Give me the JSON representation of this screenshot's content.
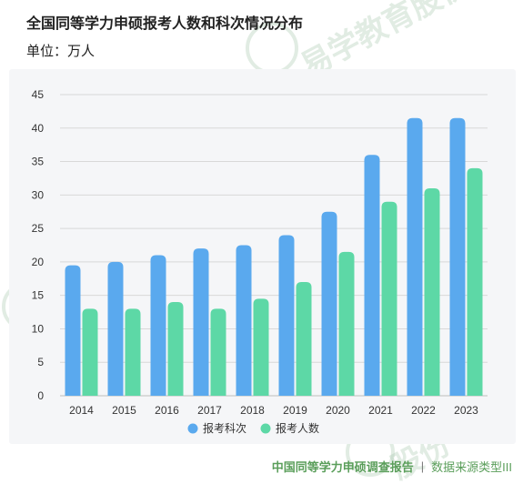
{
  "header": {
    "title": "全国同等学力申硕报考人数和科次情况分布",
    "unit": "单位：万人"
  },
  "footer": {
    "brand": "中国同等学力申硕调查报告",
    "separator": "|",
    "source": "数据来源类型III"
  },
  "watermark": {
    "text": "易学教育股份"
  },
  "colors": {
    "series1": "#5aa9ee",
    "series1_top": "#4d9be6",
    "series2": "#5dd8a6",
    "series2_top": "#4fcc98",
    "grid": "#d8d8d8",
    "axis_text": "#333333"
  },
  "chart_data": {
    "type": "bar",
    "title": "全国同等学力申硕报考人数和科次情况分布",
    "ylabel": "单位：万人",
    "categories": [
      "2014",
      "2015",
      "2016",
      "2017",
      "2018",
      "2019",
      "2020",
      "2021",
      "2022",
      "2023"
    ],
    "series": [
      {
        "name": "报考科次",
        "values": [
          19.5,
          20,
          21,
          22,
          22.5,
          24,
          27.5,
          36,
          41.5,
          41.5
        ]
      },
      {
        "name": "报考人数",
        "values": [
          13,
          13,
          14,
          13,
          14.5,
          17,
          21.5,
          29,
          31,
          34
        ]
      }
    ],
    "ylim": [
      0,
      45
    ],
    "yticks": [
      0,
      5,
      10,
      15,
      20,
      25,
      30,
      35,
      40,
      45
    ],
    "grid": true,
    "legend_position": "bottom"
  }
}
